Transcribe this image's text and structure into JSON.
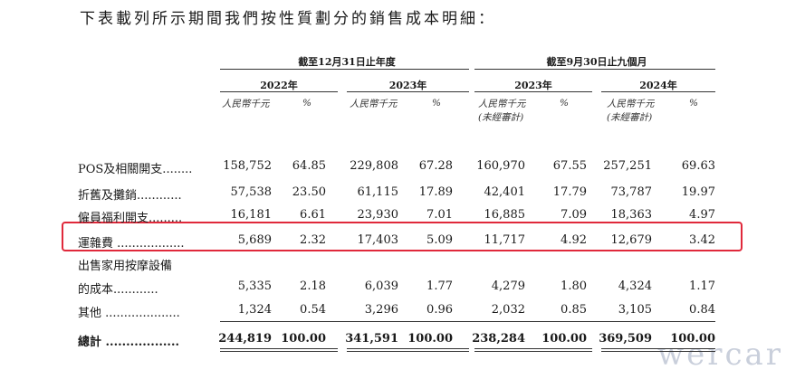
{
  "intro": "下表載列所示期間我們按性質劃分的銷售成本明細：",
  "group_headers": [
    "截至12月31日止年度",
    "截至9月30日止九個月"
  ],
  "year_headers": [
    "2022年",
    "2023年",
    "2023年",
    "2024年"
  ],
  "unit_headers": [
    "人民幣千元",
    "人民幣千元",
    "人民幣千元\n(未經審計)",
    "人民幣千元\n(未經審計)"
  ],
  "pct_header": "%",
  "rows": [
    {
      "label": "POS及相關開支........",
      "values": [
        "158,752",
        "64.85",
        "229,808",
        "67.28",
        "160,970",
        "67.55",
        "257,251",
        "69.63"
      ]
    },
    {
      "label": "折舊及攤銷............",
      "values": [
        "57,538",
        "23.50",
        "61,115",
        "17.89",
        "42,401",
        "17.79",
        "73,787",
        "19.97"
      ]
    },
    {
      "label": "僱員福利開支.........",
      "values": [
        "16,181",
        "6.61",
        "23,930",
        "7.01",
        "16,885",
        "7.09",
        "18,363",
        "4.97"
      ]
    },
    {
      "label": "運雜費 ..................",
      "values": [
        "5,689",
        "2.32",
        "17,403",
        "5.09",
        "11,717",
        "4.92",
        "12,679",
        "3.42"
      ]
    },
    {
      "label": "出售家用按摩設備",
      "values": []
    },
    {
      "label": "   的成本............",
      "values": [
        "5,335",
        "2.18",
        "6,039",
        "1.77",
        "4,279",
        "1.80",
        "4,324",
        "1.17"
      ]
    },
    {
      "label": "其他 ....................",
      "values": [
        "1,324",
        "0.54",
        "3,296",
        "0.96",
        "2,032",
        "0.85",
        "3,105",
        "0.84"
      ]
    },
    {
      "label": "總計 ..................",
      "values": [
        "244,819",
        "100.00",
        "341,591",
        "100.00",
        "238,284",
        "100.00",
        "369,509",
        "100.00"
      ],
      "bold": true
    }
  ],
  "watermark": "wercar"
}
